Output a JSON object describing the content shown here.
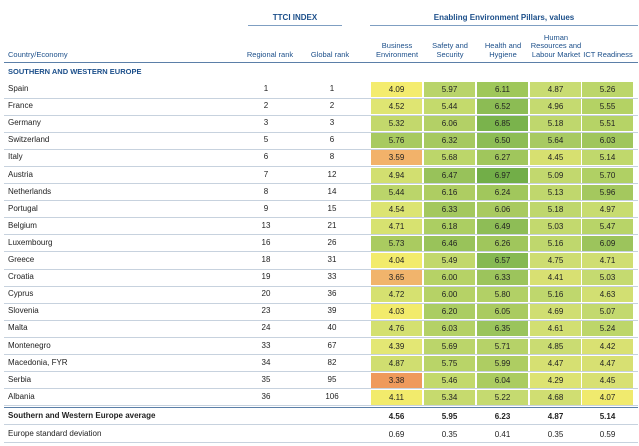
{
  "header": {
    "ttci_group": "TTCI INDEX",
    "pillars_group": "Enabling Environment Pillars, values",
    "col_country": "Country/Economy",
    "col_regional": "Regional rank",
    "col_global": "Global rank",
    "pillars": [
      [
        "Business",
        "Environment"
      ],
      [
        "Safety and",
        "Security"
      ],
      [
        "Health and",
        "Hygiene"
      ],
      [
        "Human",
        "Resources and",
        "Labour Market"
      ],
      [
        "ICT Readiness"
      ]
    ]
  },
  "section_title": "SOUTHERN AND WESTERN EUROPE",
  "rows": [
    {
      "name": "Spain",
      "regional": "1",
      "global": "1",
      "values": [
        "4.09",
        "5.97",
        "6.11",
        "4.87",
        "5.26"
      ],
      "colors": [
        "#f4ec6e",
        "#b9d46a",
        "#9fc75a",
        "#c9dc72",
        "#bcd66a"
      ]
    },
    {
      "name": "France",
      "regional": "2",
      "global": "2",
      "values": [
        "4.52",
        "5.44",
        "6.52",
        "4.96",
        "5.55"
      ],
      "colors": [
        "#dfe572",
        "#c4da6c",
        "#8cbc54",
        "#c5da70",
        "#b4d264"
      ]
    },
    {
      "name": "Germany",
      "regional": "3",
      "global": "3",
      "values": [
        "5.32",
        "6.06",
        "6.85",
        "5.18",
        "5.51"
      ],
      "colors": [
        "#c3d86c",
        "#b3d066",
        "#7ab34c",
        "#bfd76d",
        "#b6d366"
      ]
    },
    {
      "name": "Switzerland",
      "regional": "5",
      "global": "6",
      "values": [
        "5.76",
        "6.32",
        "6.50",
        "5.64",
        "6.03"
      ],
      "colors": [
        "#a8ca60",
        "#a6c960",
        "#8dbd55",
        "#a8ca62",
        "#a0c65c"
      ]
    },
    {
      "name": "Italy",
      "regional": "6",
      "global": "8",
      "values": [
        "3.59",
        "5.68",
        "6.27",
        "4.45",
        "5.14"
      ],
      "colors": [
        "#f2b26a",
        "#bcd66a",
        "#a0c65c",
        "#d7e070",
        "#c0d86c"
      ]
    },
    {
      "name": "Austria",
      "regional": "7",
      "global": "12",
      "values": [
        "4.94",
        "6.47",
        "6.97",
        "5.09",
        "5.70"
      ],
      "colors": [
        "#d2df70",
        "#98c25a",
        "#72ae48",
        "#c2d86e",
        "#b0d064"
      ]
    },
    {
      "name": "Netherlands",
      "regional": "8",
      "global": "14",
      "values": [
        "5.44",
        "6.16",
        "6.24",
        "5.13",
        "5.96"
      ],
      "colors": [
        "#bbd56a",
        "#aecd62",
        "#a1c75c",
        "#c0d76d",
        "#a4c85e"
      ]
    },
    {
      "name": "Portugal",
      "regional": "9",
      "global": "15",
      "values": [
        "4.54",
        "6.33",
        "6.06",
        "5.18",
        "4.97"
      ],
      "colors": [
        "#dce472",
        "#a4c85e",
        "#a9ca60",
        "#bfd76d",
        "#c8dc70"
      ]
    },
    {
      "name": "Belgium",
      "regional": "13",
      "global": "21",
      "values": [
        "4.71",
        "6.18",
        "6.49",
        "5.03",
        "5.47"
      ],
      "colors": [
        "#d7e270",
        "#acce62",
        "#8ebd56",
        "#c3d96e",
        "#b8d468"
      ]
    },
    {
      "name": "Luxembourg",
      "regional": "16",
      "global": "26",
      "values": [
        "5.73",
        "6.46",
        "6.26",
        "5.16",
        "6.09"
      ],
      "colors": [
        "#aacb60",
        "#99c35a",
        "#a0c65c",
        "#bfd76d",
        "#9cc45c"
      ]
    },
    {
      "name": "Greece",
      "regional": "18",
      "global": "31",
      "values": [
        "4.04",
        "5.49",
        "6.57",
        "4.75",
        "4.71"
      ],
      "colors": [
        "#f2eb6c",
        "#c2d86c",
        "#86b952",
        "#cedd72",
        "#d0de72"
      ]
    },
    {
      "name": "Croatia",
      "regional": "19",
      "global": "33",
      "values": [
        "3.65",
        "6.00",
        "6.33",
        "4.41",
        "5.03"
      ],
      "colors": [
        "#f1b46c",
        "#b6d266",
        "#9cc45c",
        "#d8e072",
        "#c5da70"
      ]
    },
    {
      "name": "Cyprus",
      "regional": "20",
      "global": "36",
      "values": [
        "4.72",
        "6.00",
        "5.80",
        "5.16",
        "4.63"
      ],
      "colors": [
        "#d6e170",
        "#b6d266",
        "#b2d066",
        "#bfd76d",
        "#d2df72"
      ]
    },
    {
      "name": "Slovenia",
      "regional": "23",
      "global": "39",
      "values": [
        "4.03",
        "6.20",
        "6.05",
        "4.69",
        "5.07"
      ],
      "colors": [
        "#f2eb6c",
        "#abcd62",
        "#aacb60",
        "#d0de72",
        "#c3d96e"
      ]
    },
    {
      "name": "Malta",
      "regional": "24",
      "global": "40",
      "values": [
        "4.76",
        "6.03",
        "6.35",
        "4.61",
        "5.24"
      ],
      "colors": [
        "#d4e070",
        "#b4d166",
        "#9ac45c",
        "#d2df72",
        "#bdd66a"
      ]
    },
    {
      "name": "Montenegro",
      "regional": "33",
      "global": "67",
      "values": [
        "4.39",
        "5.69",
        "5.71",
        "4.85",
        "4.42"
      ],
      "colors": [
        "#e3e774",
        "#bbd56a",
        "#b6d268",
        "#cadc72",
        "#d9e172"
      ]
    },
    {
      "name": "Macedonia, FYR",
      "regional": "34",
      "global": "82",
      "values": [
        "4.87",
        "5.75",
        "5.99",
        "4.47",
        "4.47"
      ],
      "colors": [
        "#d0de70",
        "#b9d468",
        "#aecd62",
        "#d6e072",
        "#d7e072"
      ]
    },
    {
      "name": "Serbia",
      "regional": "35",
      "global": "95",
      "values": [
        "3.38",
        "5.46",
        "6.04",
        "4.29",
        "4.45"
      ],
      "colors": [
        "#ef9a5c",
        "#c3d96c",
        "#abcc60",
        "#dde372",
        "#d8e072"
      ]
    },
    {
      "name": "Albania",
      "regional": "36",
      "global": "106",
      "values": [
        "4.11",
        "5.34",
        "5.22",
        "4.68",
        "4.07"
      ],
      "colors": [
        "#f2eb6c",
        "#c6da6e",
        "#c5da70",
        "#d0de72",
        "#f0ea6e"
      ]
    }
  ],
  "average": {
    "name": "Southern and Western Europe average",
    "values": [
      "4.56",
      "5.95",
      "6.23",
      "4.87",
      "5.14"
    ]
  },
  "deviation": {
    "name": "Europe standard deviation",
    "values": [
      "0.69",
      "0.35",
      "0.41",
      "0.35",
      "0.59"
    ]
  }
}
